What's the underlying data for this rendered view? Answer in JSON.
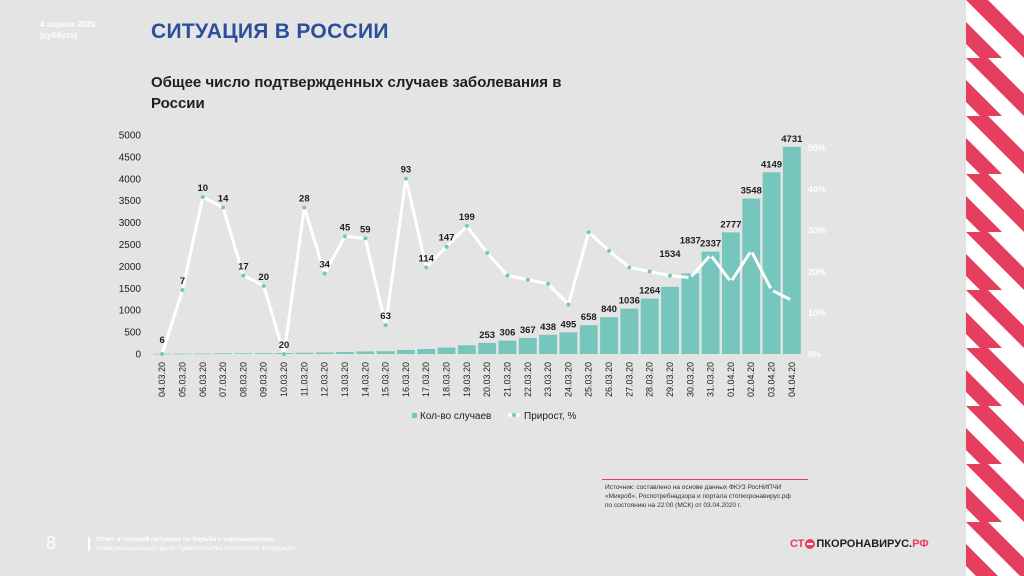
{
  "header": {
    "date_line1": "4 апреля 2020",
    "date_line2": "(суббота)",
    "slide_title": "СИТУАЦИЯ В РОССИИ",
    "chart_title": "Общее число подтвержденных случаев заболевания в России"
  },
  "colors": {
    "background": "#e4e4e4",
    "accent": "#e53e5e",
    "title": "#2b4f9a",
    "bar": "#76c6bd",
    "line": "#ffffff"
  },
  "chart_data": {
    "type": "bar",
    "title": "Общее число подтвержденных случаев заболевания в России",
    "categories": [
      "04.03.20",
      "05.03.20",
      "06.03.20",
      "07.03.20",
      "08.03.20",
      "09.03.20",
      "10.03.20",
      "11.03.20",
      "12.03.20",
      "13.03.20",
      "14.03.20",
      "15.03.20",
      "16.03.20",
      "17.03.20",
      "18.03.20",
      "19.03.20",
      "20.03.20",
      "21.03.20",
      "22.03.20",
      "23.03.20",
      "24.03.20",
      "25.03.20",
      "26.03.20",
      "27.03.20",
      "28.03.20",
      "29.03.20",
      "30.03.20",
      "31.03.20",
      "01.04.20",
      "02.04.20",
      "03.04.20",
      "04.04.20"
    ],
    "series": [
      {
        "name": "Кол-во случаев",
        "type": "bar",
        "axis": "left",
        "values": [
          6,
          7,
          10,
          14,
          17,
          20,
          20,
          28,
          34,
          45,
          59,
          63,
          93,
          114,
          147,
          199,
          253,
          306,
          367,
          438,
          495,
          658,
          840,
          1036,
          1264,
          1534,
          1837,
          2337,
          2777,
          3548,
          4149,
          4731
        ]
      },
      {
        "name": "Прирост, %",
        "type": "line",
        "axis": "right",
        "values": [
          0,
          15.5,
          38,
          35.5,
          19,
          16.5,
          0,
          35.5,
          19.5,
          28.5,
          28,
          7,
          42.5,
          21,
          26,
          31,
          24.5,
          19,
          18,
          17,
          12,
          29.5,
          25,
          21,
          20,
          19,
          18.5,
          24,
          17.5,
          25,
          15.5,
          13
        ]
      }
    ],
    "y_left": {
      "min": 0,
      "max": 5000,
      "ticks": [
        0,
        500,
        1000,
        1500,
        2000,
        2500,
        3000,
        3500,
        4000,
        4500,
        5000
      ]
    },
    "y_right": {
      "min": 0,
      "max": 55,
      "ticks": [
        "0%",
        "10%",
        "20%",
        "30%",
        "40%",
        "50%"
      ],
      "tick_values": [
        0,
        10,
        20,
        30,
        40,
        50
      ]
    },
    "legend": {
      "placement": "bottom",
      "items": [
        "Кол-во случаев",
        "Прирост, %"
      ]
    },
    "grid": false
  },
  "source": {
    "line1": "Источник: составлено на основе данных ФКУЗ РосНИПЧИ",
    "line2": "«Микроб», Роспотребнадзора и портала стопкоронавирус.рф",
    "line3": "по состоянию на 22:00 (МСК) от 03.04.2020 г."
  },
  "footer": {
    "page_number": "8",
    "line1": "Отчет о текущей ситуации по борьбе с коронавирусом.",
    "line2": "Коммуникационный центр Правительства Российской Федерации",
    "brand_a": "СТ",
    "brand_b": "ПКОРОНАВИРУС.",
    "brand_c": "РФ"
  }
}
